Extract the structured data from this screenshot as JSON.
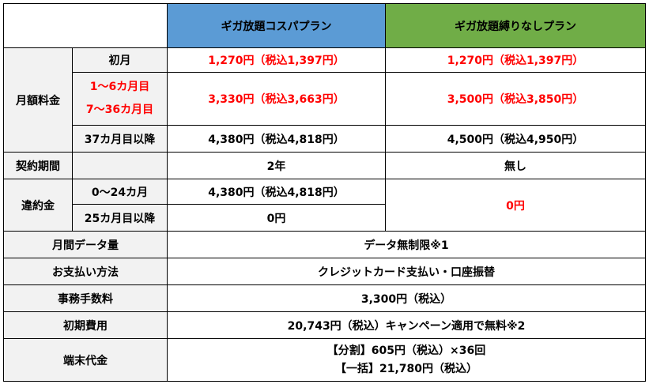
{
  "header": {
    "plan1": "ギガ放題コスパプラン",
    "plan2": "ギガ放題縛りなしプラン"
  },
  "monthly_fee": {
    "label": "月額料金",
    "rows": [
      {
        "period": "初月",
        "plan1": "1,270円（税込1,397円）",
        "plan2": "1,270円（税込1,397円）"
      },
      {
        "period_a": "1〜6カ月目",
        "period_b": "7〜36カ月目",
        "plan1": "3,330円（税込3,663円）",
        "plan2": "3,500円（税込3,850円）"
      },
      {
        "period": "37カ月目以降",
        "plan1": "4,380円（税込4,818円）",
        "plan2": "4,500円（税込4,950円）"
      }
    ]
  },
  "contract_period": {
    "label": "契約期間",
    "plan1": "2年",
    "plan2": "無し"
  },
  "cancellation_fee": {
    "label": "違約金",
    "rows": [
      {
        "period": "0〜24カ月",
        "plan1": "4,380円（税込4,818円）"
      },
      {
        "period": "25カ月目以降",
        "plan1": "0円"
      }
    ],
    "plan2": "0円"
  },
  "data_volume": {
    "label": "月間データ量",
    "value": "データ無制限※1"
  },
  "payment_method": {
    "label": "お支払い方法",
    "value": "クレジットカード支払い・口座振替"
  },
  "admin_fee": {
    "label": "事務手数料",
    "value": "3,300円（税込）"
  },
  "initial_cost": {
    "label": "初期費用",
    "value": "20,743円（税込）キャンペーン適用で無料※2"
  },
  "device_cost": {
    "label": "端末代金",
    "line1": "【分割】605円（税込）×36回",
    "line2": "【一括】21,780円（税込）"
  }
}
